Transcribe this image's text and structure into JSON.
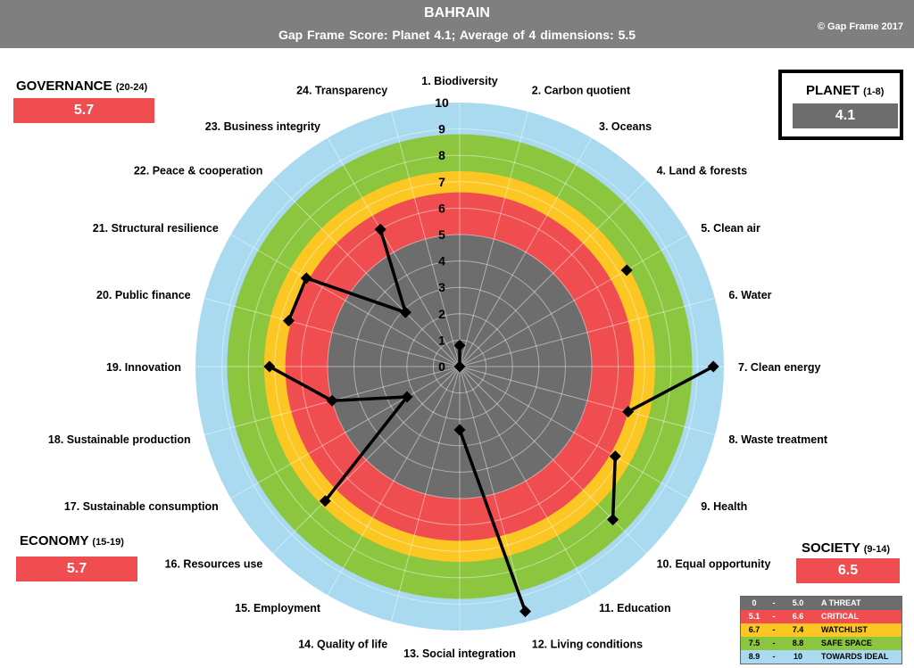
{
  "header": {
    "title": "BAHRAIN",
    "subtitle": "Gap Frame Score: Planet 4.1;     Average of 4 dimensions: 5.5",
    "copyright": "© Gap Frame 2017"
  },
  "dimensions": {
    "governance": {
      "name": "GOVERNANCE",
      "range": "(20-24)",
      "score": "5.7",
      "color": "#ef4d4f"
    },
    "planet": {
      "name": "PLANET",
      "range": "(1-8)",
      "score": "4.1",
      "color": "#6d6d6d"
    },
    "economy": {
      "name": "ECONOMY",
      "range": "(15-19)",
      "score": "5.7",
      "color": "#ef4d4f"
    },
    "society": {
      "name": "SOCIETY",
      "range": "(9-14)",
      "score": "6.5",
      "color": "#ef4d4f"
    }
  },
  "legend": [
    {
      "from": "0",
      "dash": "-",
      "to": "5.0",
      "label": "A THREAT",
      "color": "#6d6d6d"
    },
    {
      "from": "5.1",
      "dash": "-",
      "to": "6.6",
      "label": "CRITICAL",
      "color": "#ef4d4f"
    },
    {
      "from": "6.7",
      "dash": "-",
      "to": "7.4",
      "label": "WATCHLIST",
      "color": "#fcc623"
    },
    {
      "from": "7.5",
      "dash": "-",
      "to": "8.8",
      "label": "SAFE  SPACE",
      "color": "#8cc63f"
    },
    {
      "from": "8.9",
      "dash": "-",
      "to": "10",
      "label": "TOWARDS IDEAL",
      "color": "#a9daf0"
    }
  ],
  "chart_data": {
    "type": "radar",
    "title": "BAHRAIN",
    "categories": [
      "1. Biodiversity",
      "2. Carbon quotient",
      "3. Oceans",
      "4. Land & forests",
      "5. Clean air",
      "6. Water",
      "7. Clean energy",
      "8. Waste treatment",
      "9. Health",
      "10. Equal opportunity",
      "11. Education",
      "12. Living conditions",
      "13. Social integration",
      "14. Quality of life",
      "15. Employment",
      "16. Resources use",
      "17. Sustainable consumption",
      "18. Sustainable production",
      "19. Innovation",
      "20. Public finance",
      "21. Structural resilience",
      "22. Peace & cooperation",
      "23. Business integrity",
      "24. Transparency"
    ],
    "segments": [
      {
        "dimension": "Planet",
        "indices": [
          0,
          1,
          2,
          3,
          4,
          5,
          6,
          7
        ],
        "values": [
          0.8,
          0,
          null,
          null,
          7.3,
          null,
          9.6,
          6.6
        ]
      },
      {
        "dimension": "Society",
        "indices": [
          8,
          9,
          10,
          11,
          12,
          13
        ],
        "values": [
          6.8,
          8.2,
          null,
          9.6,
          2.4,
          null
        ]
      },
      {
        "dimension": "Economy",
        "indices": [
          14,
          15,
          16,
          17,
          18
        ],
        "values": [
          null,
          7.2,
          2.3,
          5.0,
          7.2
        ]
      },
      {
        "dimension": "Governance",
        "indices": [
          19,
          20,
          21,
          22,
          23
        ],
        "values": [
          6.7,
          6.7,
          2.9,
          6.0,
          null
        ]
      }
    ],
    "ylim": [
      0,
      10
    ],
    "ticks": [
      "0",
      "1",
      "2",
      "3",
      "4",
      "5",
      "6",
      "7",
      "8",
      "9",
      "10"
    ],
    "bands": [
      {
        "from": 0,
        "to": 5.0,
        "color": "#6d6d6d"
      },
      {
        "from": 5.0,
        "to": 6.6,
        "color": "#ef4d4f"
      },
      {
        "from": 6.6,
        "to": 7.4,
        "color": "#fcc623"
      },
      {
        "from": 7.4,
        "to": 8.8,
        "color": "#8cc63f"
      },
      {
        "from": 8.8,
        "to": 10,
        "color": "#a9daf0"
      }
    ]
  }
}
